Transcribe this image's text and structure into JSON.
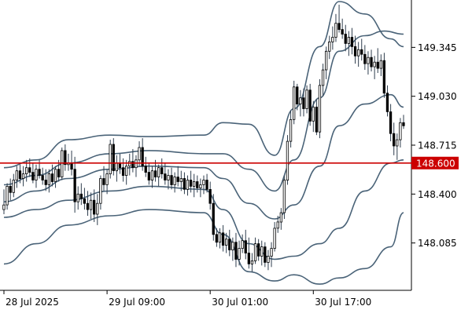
{
  "chart_data": {
    "type": "candlestick",
    "instrument_note": "",
    "y_axis": {
      "ylim": [
        147.78,
        149.64
      ],
      "ticks": [
        148.085,
        148.4,
        148.715,
        149.03,
        149.345
      ]
    },
    "y_tick_labels": [
      "148.085",
      "148.400",
      "148.715",
      "149.030",
      "149.345"
    ],
    "x_tick_labels": [
      {
        "label": "28 Jul 2025",
        "index": 0
      },
      {
        "label": "29 Jul 09:00",
        "index": 32
      },
      {
        "label": "30 Jul 01:00",
        "index": 64
      },
      {
        "label": "30 Jul 17:00",
        "index": 96
      }
    ],
    "candle_count": 125,
    "candles": [
      [
        0,
        148.3,
        148.43,
        148.27,
        148.33
      ],
      [
        1,
        148.33,
        148.47,
        148.3,
        148.45
      ],
      [
        2,
        148.45,
        148.5,
        148.36,
        148.41
      ],
      [
        3,
        148.41,
        148.53,
        148.38,
        148.49
      ],
      [
        4,
        148.49,
        148.58,
        148.44,
        148.55
      ],
      [
        5,
        148.55,
        148.59,
        148.47,
        148.5
      ],
      [
        6,
        148.5,
        148.58,
        148.45,
        148.53
      ],
      [
        7,
        148.53,
        148.62,
        148.48,
        148.57
      ],
      [
        8,
        148.57,
        148.63,
        148.51,
        148.54
      ],
      [
        9,
        148.54,
        148.6,
        148.47,
        148.49
      ],
      [
        10,
        148.49,
        148.59,
        148.44,
        148.56
      ],
      [
        11,
        148.56,
        148.62,
        148.5,
        148.52
      ],
      [
        12,
        148.52,
        148.57,
        148.46,
        148.49
      ],
      [
        13,
        148.49,
        148.56,
        148.42,
        148.46
      ],
      [
        14,
        148.46,
        148.56,
        148.41,
        148.53
      ],
      [
        15,
        148.53,
        148.59,
        148.45,
        148.48
      ],
      [
        16,
        148.48,
        148.58,
        148.44,
        148.56
      ],
      [
        17,
        148.56,
        148.62,
        148.48,
        148.51
      ],
      [
        18,
        148.51,
        148.7,
        148.49,
        148.68
      ],
      [
        19,
        148.68,
        148.72,
        148.55,
        148.59
      ],
      [
        20,
        148.59,
        148.66,
        148.55,
        148.6
      ],
      [
        21,
        148.6,
        148.68,
        148.52,
        148.56
      ],
      [
        22,
        148.56,
        148.64,
        148.28,
        148.35
      ],
      [
        23,
        148.35,
        148.45,
        148.3,
        148.4
      ],
      [
        24,
        148.4,
        148.47,
        148.33,
        148.37
      ],
      [
        25,
        148.37,
        148.44,
        148.3,
        148.34
      ],
      [
        26,
        148.34,
        148.42,
        148.26,
        148.3
      ],
      [
        27,
        148.3,
        148.41,
        148.24,
        148.36
      ],
      [
        28,
        148.36,
        148.43,
        148.22,
        148.27
      ],
      [
        29,
        148.27,
        148.4,
        148.2,
        148.34
      ],
      [
        30,
        148.34,
        148.52,
        148.3,
        148.5
      ],
      [
        31,
        148.5,
        148.58,
        148.42,
        148.46
      ],
      [
        32,
        148.46,
        148.56,
        148.4,
        148.53
      ],
      [
        33,
        148.53,
        148.75,
        148.5,
        148.72
      ],
      [
        34,
        148.72,
        148.76,
        148.52,
        148.55
      ],
      [
        35,
        148.55,
        148.65,
        148.48,
        148.6
      ],
      [
        36,
        148.6,
        148.66,
        148.53,
        148.57
      ],
      [
        37,
        148.57,
        148.63,
        148.48,
        148.52
      ],
      [
        38,
        148.52,
        148.62,
        148.46,
        148.58
      ],
      [
        39,
        148.58,
        148.66,
        148.52,
        148.61
      ],
      [
        40,
        148.61,
        148.69,
        148.54,
        148.57
      ],
      [
        41,
        148.57,
        148.65,
        148.51,
        148.62
      ],
      [
        42,
        148.62,
        148.74,
        148.58,
        148.7
      ],
      [
        43,
        148.7,
        148.76,
        148.55,
        148.58
      ],
      [
        44,
        148.58,
        148.64,
        148.51,
        148.54
      ],
      [
        45,
        148.54,
        148.6,
        148.46,
        148.49
      ],
      [
        46,
        148.49,
        148.58,
        148.44,
        148.55
      ],
      [
        47,
        148.55,
        148.62,
        148.48,
        148.51
      ],
      [
        48,
        148.51,
        148.59,
        148.45,
        148.57
      ],
      [
        49,
        148.57,
        148.63,
        148.5,
        148.53
      ],
      [
        50,
        148.53,
        148.6,
        148.46,
        148.49
      ],
      [
        51,
        148.49,
        148.56,
        148.43,
        148.52
      ],
      [
        52,
        148.52,
        148.57,
        148.43,
        148.46
      ],
      [
        53,
        148.46,
        148.54,
        148.41,
        148.51
      ],
      [
        54,
        148.51,
        148.58,
        148.45,
        148.48
      ],
      [
        55,
        148.48,
        148.55,
        148.42,
        148.5
      ],
      [
        56,
        148.5,
        148.54,
        148.4,
        148.43
      ],
      [
        57,
        148.43,
        148.52,
        148.39,
        148.49
      ],
      [
        58,
        148.49,
        148.55,
        148.41,
        148.45
      ],
      [
        59,
        148.45,
        148.53,
        148.38,
        148.48
      ],
      [
        60,
        148.48,
        148.52,
        148.41,
        148.44
      ],
      [
        61,
        148.44,
        148.5,
        148.38,
        148.46
      ],
      [
        62,
        148.46,
        148.52,
        148.4,
        148.49
      ],
      [
        63,
        148.49,
        148.53,
        148.41,
        148.43
      ],
      [
        64,
        148.43,
        148.48,
        148.3,
        148.34
      ],
      [
        65,
        148.34,
        148.4,
        148.1,
        148.14
      ],
      [
        66,
        148.14,
        148.18,
        148.06,
        148.09
      ],
      [
        67,
        148.09,
        148.18,
        148.05,
        148.15
      ],
      [
        68,
        148.15,
        148.2,
        148.03,
        148.07
      ],
      [
        69,
        148.07,
        148.15,
        148.02,
        148.11
      ],
      [
        70,
        148.11,
        148.17,
        148.0,
        148.04
      ],
      [
        71,
        148.04,
        148.12,
        147.97,
        148.09
      ],
      [
        72,
        148.09,
        148.15,
        147.93,
        147.98
      ],
      [
        73,
        147.98,
        148.1,
        147.94,
        148.05
      ],
      [
        74,
        148.05,
        148.14,
        148.02,
        148.1
      ],
      [
        75,
        148.1,
        148.17,
        147.98,
        148.02
      ],
      [
        76,
        148.02,
        148.12,
        147.92,
        147.95
      ],
      [
        77,
        147.95,
        148.02,
        147.9,
        147.97
      ],
      [
        78,
        147.97,
        148.12,
        147.95,
        148.08
      ],
      [
        79,
        148.08,
        148.11,
        147.97,
        148.0
      ],
      [
        80,
        148.0,
        148.1,
        147.94,
        148.06
      ],
      [
        81,
        148.06,
        148.09,
        147.93,
        147.96
      ],
      [
        82,
        147.96,
        148.04,
        147.91,
        148.0
      ],
      [
        83,
        148.0,
        148.09,
        147.93,
        148.05
      ],
      [
        84,
        148.05,
        148.22,
        148.03,
        148.18
      ],
      [
        85,
        148.18,
        148.26,
        148.15,
        148.22
      ],
      [
        86,
        148.22,
        148.31,
        148.17,
        148.28
      ],
      [
        87,
        148.28,
        148.52,
        148.24,
        148.49
      ],
      [
        88,
        148.49,
        148.78,
        148.46,
        148.74
      ],
      [
        89,
        148.74,
        148.94,
        148.7,
        148.88
      ],
      [
        90,
        148.88,
        149.13,
        148.85,
        149.09
      ],
      [
        91,
        149.09,
        149.11,
        148.94,
        148.98
      ],
      [
        92,
        148.98,
        149.07,
        148.9,
        149.02
      ],
      [
        93,
        149.02,
        149.08,
        148.9,
        148.95
      ],
      [
        94,
        148.95,
        149.1,
        148.92,
        149.07
      ],
      [
        95,
        149.07,
        149.11,
        148.84,
        148.87
      ],
      [
        96,
        148.87,
        149.0,
        148.8,
        148.96
      ],
      [
        97,
        148.96,
        149.01,
        148.78,
        148.8
      ],
      [
        98,
        148.8,
        149.14,
        148.76,
        149.1
      ],
      [
        99,
        149.1,
        149.24,
        149.03,
        149.2
      ],
      [
        100,
        149.2,
        149.35,
        149.14,
        149.32
      ],
      [
        101,
        149.32,
        149.42,
        149.27,
        149.38
      ],
      [
        102,
        149.38,
        149.48,
        149.33,
        149.41
      ],
      [
        103,
        149.41,
        149.56,
        149.38,
        149.5
      ],
      [
        104,
        149.5,
        149.62,
        149.44,
        149.46
      ],
      [
        105,
        149.46,
        149.53,
        149.4,
        149.43
      ],
      [
        106,
        149.43,
        149.49,
        149.32,
        149.37
      ],
      [
        107,
        149.37,
        149.45,
        149.29,
        149.41
      ],
      [
        108,
        149.41,
        149.47,
        149.3,
        149.35
      ],
      [
        109,
        149.35,
        149.42,
        149.24,
        149.29
      ],
      [
        110,
        149.29,
        149.38,
        149.22,
        149.33
      ],
      [
        111,
        149.33,
        149.4,
        149.26,
        149.3
      ],
      [
        112,
        149.3,
        149.36,
        149.2,
        149.24
      ],
      [
        113,
        149.24,
        149.32,
        149.17,
        149.28
      ],
      [
        114,
        149.28,
        149.33,
        149.19,
        149.22
      ],
      [
        115,
        149.22,
        149.29,
        149.14,
        149.25
      ],
      [
        116,
        149.25,
        149.34,
        149.18,
        149.21
      ],
      [
        117,
        149.21,
        149.3,
        149.16,
        149.26
      ],
      [
        118,
        149.26,
        149.31,
        149.02,
        149.05
      ],
      [
        119,
        149.05,
        149.1,
        148.9,
        148.93
      ],
      [
        120,
        148.93,
        148.98,
        148.74,
        148.79
      ],
      [
        121,
        148.79,
        148.86,
        148.65,
        148.71
      ],
      [
        122,
        148.71,
        148.79,
        148.62,
        148.75
      ],
      [
        123,
        148.75,
        148.89,
        148.7,
        148.86
      ],
      [
        124,
        148.86,
        148.91,
        148.82,
        148.84
      ]
    ],
    "lines_note": "Bollinger-style bands (grey-blue), 5 envelope lines",
    "bands": [
      {
        "name": "upper2",
        "values": [
          [
            0,
            148.57
          ],
          [
            10,
            148.62
          ],
          [
            20,
            148.75
          ],
          [
            33,
            148.78
          ],
          [
            45,
            148.77
          ],
          [
            62,
            148.78
          ],
          [
            68,
            148.86
          ],
          [
            76,
            148.85
          ],
          [
            84,
            148.65
          ],
          [
            90,
            148.95
          ],
          [
            98,
            149.35
          ],
          [
            104,
            149.64
          ],
          [
            112,
            149.56
          ],
          [
            120,
            149.4
          ],
          [
            124,
            149.35
          ]
        ]
      },
      {
        "name": "upper1",
        "values": [
          [
            0,
            148.46
          ],
          [
            10,
            148.52
          ],
          [
            20,
            148.6
          ],
          [
            33,
            148.66
          ],
          [
            45,
            148.68
          ],
          [
            62,
            148.66
          ],
          [
            68,
            148.66
          ],
          [
            76,
            148.56
          ],
          [
            84,
            148.42
          ],
          [
            90,
            148.62
          ],
          [
            98,
            149.02
          ],
          [
            104,
            149.32
          ],
          [
            112,
            149.42
          ],
          [
            118,
            149.45
          ],
          [
            124,
            149.43
          ]
        ]
      },
      {
        "name": "mid",
        "values": [
          [
            0,
            148.35
          ],
          [
            10,
            148.42
          ],
          [
            20,
            148.5
          ],
          [
            33,
            148.56
          ],
          [
            45,
            148.58
          ],
          [
            62,
            148.57
          ],
          [
            68,
            148.5
          ],
          [
            76,
            148.34
          ],
          [
            84,
            148.24
          ],
          [
            90,
            148.33
          ],
          [
            98,
            148.58
          ],
          [
            104,
            148.84
          ],
          [
            112,
            148.98
          ],
          [
            120,
            149.04
          ],
          [
            124,
            148.96
          ]
        ]
      },
      {
        "name": "lower1",
        "values": [
          [
            0,
            148.25
          ],
          [
            10,
            148.3
          ],
          [
            20,
            148.36
          ],
          [
            33,
            148.42
          ],
          [
            45,
            148.45
          ],
          [
            62,
            148.43
          ],
          [
            68,
            148.3
          ],
          [
            76,
            148.08
          ],
          [
            84,
            147.98
          ],
          [
            90,
            148.0
          ],
          [
            98,
            148.08
          ],
          [
            104,
            148.18
          ],
          [
            112,
            148.42
          ],
          [
            120,
            148.6
          ],
          [
            124,
            148.62
          ]
        ]
      },
      {
        "name": "lower2",
        "values": [
          [
            0,
            147.95
          ],
          [
            10,
            148.08
          ],
          [
            20,
            148.2
          ],
          [
            33,
            148.26
          ],
          [
            45,
            148.3
          ],
          [
            62,
            148.28
          ],
          [
            68,
            148.14
          ],
          [
            76,
            147.9
          ],
          [
            84,
            147.84
          ],
          [
            90,
            147.88
          ],
          [
            98,
            147.82
          ],
          [
            104,
            147.86
          ],
          [
            112,
            147.92
          ],
          [
            120,
            148.06
          ],
          [
            124,
            148.28
          ]
        ]
      }
    ],
    "horizontal_line": {
      "value": 148.6,
      "label": "148.600",
      "color": "#cc0000"
    },
    "colors": {
      "bull_fill": "#ffffff",
      "bear_fill": "#000000",
      "candle_stroke": "#000000",
      "wick": "#2f3e4e",
      "band": "#4a6378",
      "axis": "#000000",
      "price_tag_bg": "#cc0000",
      "price_tag_text": "#ffffff"
    }
  }
}
